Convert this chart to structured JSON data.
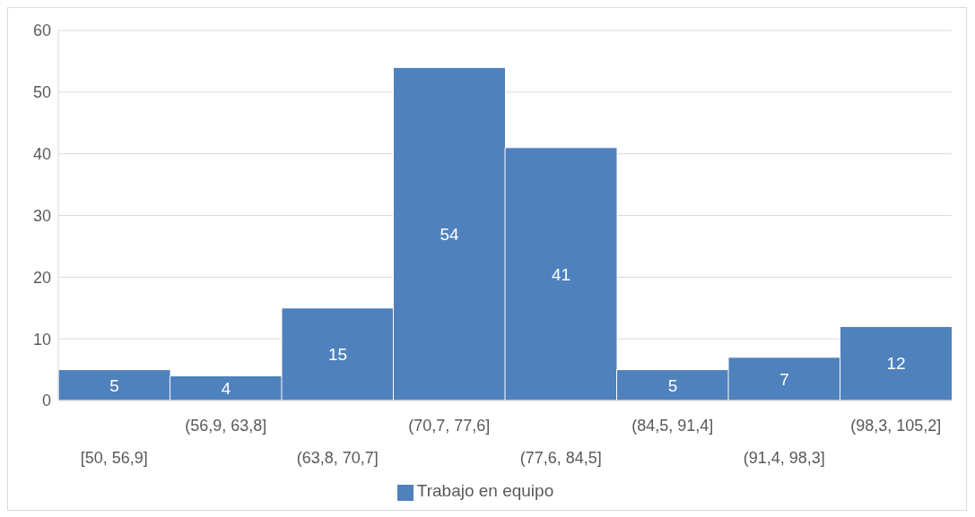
{
  "chart_data": {
    "type": "bar",
    "categories": [
      "[50, 56,9]",
      "(56,9, 63,8]",
      "(63,8, 70,7]",
      "(70,7, 77,6]",
      "(77,6, 84,5]",
      "(84,5, 91,4]",
      "(91,4, 98,3]",
      "(98,3, 105,2]"
    ],
    "series": [
      {
        "name": "Trabajo en equipo",
        "color": "#4f81bd",
        "values": [
          5,
          4,
          15,
          54,
          41,
          5,
          7,
          12
        ]
      }
    ],
    "ylim": [
      0,
      60
    ],
    "yticks": [
      0,
      10,
      20,
      30,
      40,
      50,
      60
    ],
    "grid": "y",
    "legend": "bottom",
    "data_labels": true
  }
}
